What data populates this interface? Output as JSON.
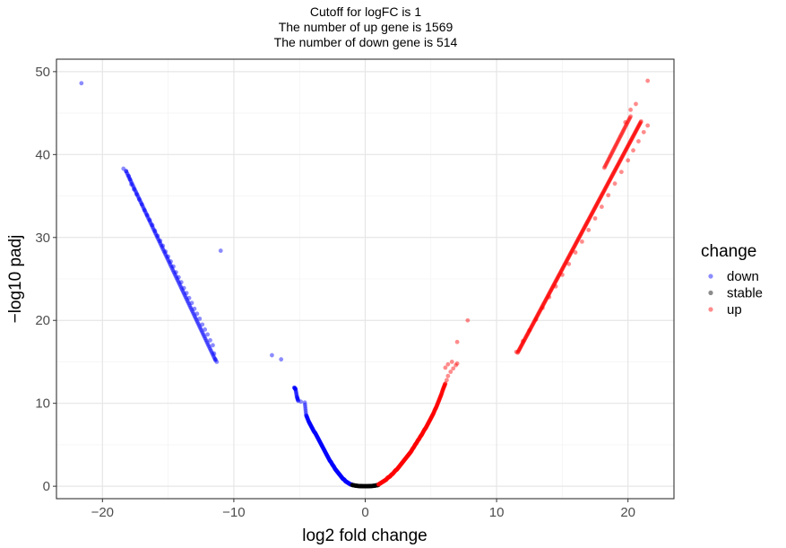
{
  "chart_data": {
    "type": "scatter",
    "title_lines": [
      "Cutoff for logFC is 1",
      "The number of up gene is 1569",
      "The number of down gene is 514"
    ],
    "xlabel": "log2 fold change",
    "ylabel": "−log10 padj",
    "xlim": [
      -23.5,
      23.5
    ],
    "ylim": [
      -1.5,
      51.5
    ],
    "xticks": [
      -20,
      -10,
      0,
      10,
      20
    ],
    "yticks": [
      0,
      10,
      20,
      30,
      40,
      50
    ],
    "xtick_labels": [
      "−20",
      "−10",
      "0",
      "10",
      "20"
    ],
    "ytick_labels": [
      "0",
      "10",
      "20",
      "30",
      "40",
      "50"
    ],
    "grid": true,
    "legend": {
      "title": "change",
      "placement": "right",
      "items": [
        {
          "label": "down",
          "color": "#0000ff"
        },
        {
          "label": "stable",
          "color": "#000000"
        },
        {
          "label": "up",
          "color": "#ff0000"
        }
      ]
    },
    "series": [
      {
        "name": "down",
        "color": "#0000ff",
        "points": [
          [
            -21.6,
            48.6
          ],
          [
            -18.4,
            38.3
          ],
          [
            -18.2,
            38.0
          ],
          [
            -18.0,
            37.4
          ],
          [
            -17.9,
            37.0
          ],
          [
            -17.8,
            36.4
          ],
          [
            -17.6,
            35.8
          ],
          [
            -17.4,
            35.2
          ],
          [
            -17.2,
            34.6
          ],
          [
            -17.0,
            34.0
          ],
          [
            -16.8,
            33.3
          ],
          [
            -16.6,
            32.7
          ],
          [
            -16.4,
            32.1
          ],
          [
            -16.2,
            31.5
          ],
          [
            -16.0,
            30.8
          ],
          [
            -15.8,
            30.2
          ],
          [
            -15.6,
            29.6
          ],
          [
            -15.4,
            29.0
          ],
          [
            -15.2,
            28.3
          ],
          [
            -15.0,
            27.7
          ],
          [
            -14.8,
            27.1
          ],
          [
            -14.6,
            26.5
          ],
          [
            -14.4,
            25.8
          ],
          [
            -14.2,
            25.2
          ],
          [
            -14.0,
            24.6
          ],
          [
            -13.8,
            23.9
          ],
          [
            -13.6,
            23.3
          ],
          [
            -13.4,
            22.7
          ],
          [
            -13.2,
            22.1
          ],
          [
            -13.0,
            21.4
          ],
          [
            -12.8,
            20.8
          ],
          [
            -12.6,
            20.2
          ],
          [
            -12.4,
            19.5
          ],
          [
            -12.2,
            18.9
          ],
          [
            -12.0,
            18.3
          ],
          [
            -11.8,
            17.6
          ],
          [
            -11.6,
            17.0
          ],
          [
            -11.5,
            16.0
          ],
          [
            -11.4,
            15.3
          ],
          [
            -11.3,
            15.0
          ],
          [
            -11.0,
            28.4
          ],
          [
            -7.1,
            15.8
          ],
          [
            -6.4,
            15.3
          ],
          [
            -5.4,
            11.9
          ],
          [
            -5.3,
            11.7
          ],
          [
            -5.2,
            10.8
          ],
          [
            -5.1,
            10.3
          ],
          [
            -4.9,
            10.2
          ],
          [
            -4.6,
            10.1
          ],
          [
            -4.5,
            8.6
          ],
          [
            -4.4,
            8.2
          ],
          [
            -4.3,
            7.8
          ],
          [
            -4.2,
            7.5
          ],
          [
            -4.1,
            7.2
          ],
          [
            -4.0,
            6.9
          ],
          [
            -3.9,
            6.6
          ],
          [
            -3.8,
            6.4
          ],
          [
            -3.7,
            6.1
          ],
          [
            -3.6,
            5.8
          ],
          [
            -3.5,
            5.5
          ],
          [
            -3.4,
            5.2
          ],
          [
            -3.3,
            4.9
          ],
          [
            -3.2,
            4.6
          ],
          [
            -3.1,
            4.3
          ],
          [
            -3.0,
            4.0
          ],
          [
            -2.9,
            3.7
          ],
          [
            -2.8,
            3.4
          ],
          [
            -2.7,
            3.1
          ],
          [
            -2.6,
            2.9
          ],
          [
            -2.5,
            2.6
          ],
          [
            -2.4,
            2.4
          ],
          [
            -2.3,
            2.1
          ],
          [
            -2.2,
            1.9
          ],
          [
            -2.1,
            1.7
          ],
          [
            -2.0,
            1.5
          ],
          [
            -1.9,
            1.3
          ],
          [
            -1.8,
            1.1
          ],
          [
            -1.7,
            0.9
          ],
          [
            -1.6,
            0.8
          ],
          [
            -1.5,
            0.6
          ],
          [
            -1.4,
            0.5
          ],
          [
            -1.3,
            0.4
          ],
          [
            -1.2,
            0.3
          ],
          [
            -1.1,
            0.2
          ],
          [
            -1.0,
            0.2
          ]
        ]
      },
      {
        "name": "stable",
        "color": "#000000",
        "points": [
          [
            -1.0,
            0.15
          ],
          [
            -0.9,
            0.12
          ],
          [
            -0.8,
            0.09
          ],
          [
            -0.7,
            0.06
          ],
          [
            -0.6,
            0.04
          ],
          [
            -0.5,
            0.03
          ],
          [
            -0.4,
            0.02
          ],
          [
            -0.3,
            0.01
          ],
          [
            -0.2,
            0.0
          ],
          [
            -0.1,
            0.0
          ],
          [
            0.0,
            0.0
          ],
          [
            0.1,
            0.0
          ],
          [
            0.2,
            0.0
          ],
          [
            0.3,
            0.01
          ],
          [
            0.4,
            0.02
          ],
          [
            0.5,
            0.03
          ],
          [
            0.6,
            0.04
          ],
          [
            0.7,
            0.06
          ],
          [
            0.8,
            0.09
          ],
          [
            0.9,
            0.12
          ],
          [
            1.0,
            0.15
          ]
        ]
      },
      {
        "name": "up",
        "color": "#ff0000",
        "points": [
          [
            1.0,
            0.2
          ],
          [
            1.1,
            0.3
          ],
          [
            1.2,
            0.4
          ],
          [
            1.3,
            0.5
          ],
          [
            1.4,
            0.6
          ],
          [
            1.5,
            0.7
          ],
          [
            1.6,
            0.8
          ],
          [
            1.7,
            1.0
          ],
          [
            1.8,
            1.1
          ],
          [
            1.9,
            1.2
          ],
          [
            2.0,
            1.4
          ],
          [
            2.1,
            1.5
          ],
          [
            2.2,
            1.7
          ],
          [
            2.3,
            1.9
          ],
          [
            2.4,
            2.0
          ],
          [
            2.5,
            2.2
          ],
          [
            2.6,
            2.4
          ],
          [
            2.7,
            2.6
          ],
          [
            2.8,
            2.8
          ],
          [
            2.9,
            3.0
          ],
          [
            3.0,
            3.2
          ],
          [
            3.1,
            3.4
          ],
          [
            3.2,
            3.6
          ],
          [
            3.3,
            3.8
          ],
          [
            3.4,
            4.0
          ],
          [
            3.5,
            4.2
          ],
          [
            3.6,
            4.5
          ],
          [
            3.7,
            4.7
          ],
          [
            3.8,
            5.0
          ],
          [
            3.9,
            5.2
          ],
          [
            4.0,
            5.5
          ],
          [
            4.1,
            5.7
          ],
          [
            4.2,
            6.0
          ],
          [
            4.3,
            6.2
          ],
          [
            4.4,
            6.5
          ],
          [
            4.5,
            6.8
          ],
          [
            4.6,
            7.0
          ],
          [
            4.7,
            7.3
          ],
          [
            4.8,
            7.6
          ],
          [
            4.9,
            7.9
          ],
          [
            5.0,
            8.2
          ],
          [
            5.1,
            8.5
          ],
          [
            5.2,
            8.8
          ],
          [
            5.3,
            9.2
          ],
          [
            5.4,
            9.5
          ],
          [
            5.5,
            9.9
          ],
          [
            5.6,
            10.3
          ],
          [
            5.7,
            10.7
          ],
          [
            5.8,
            11.1
          ],
          [
            5.9,
            11.6
          ],
          [
            6.0,
            12.0
          ],
          [
            6.1,
            12.4
          ],
          [
            6.2,
            12.8
          ],
          [
            6.3,
            13.3
          ],
          [
            6.5,
            13.8
          ],
          [
            6.7,
            14.2
          ],
          [
            6.9,
            14.6
          ],
          [
            6.6,
            15.0
          ],
          [
            7.0,
            14.8
          ],
          [
            6.3,
            14.7
          ],
          [
            6.1,
            14.3
          ],
          [
            7.0,
            17.4
          ],
          [
            7.8,
            20.0
          ],
          [
            11.5,
            16.2
          ],
          [
            12.0,
            17.5
          ],
          [
            12.5,
            18.8
          ],
          [
            13.0,
            20.1
          ],
          [
            13.5,
            21.5
          ],
          [
            14.0,
            22.8
          ],
          [
            14.5,
            24.1
          ],
          [
            15.0,
            25.5
          ],
          [
            15.5,
            26.8
          ],
          [
            16.0,
            28.2
          ],
          [
            16.5,
            29.5
          ],
          [
            17.0,
            30.9
          ],
          [
            17.5,
            32.3
          ],
          [
            18.0,
            33.7
          ],
          [
            18.5,
            35.1
          ],
          [
            19.0,
            36.5
          ],
          [
            19.5,
            37.9
          ],
          [
            20.0,
            39.3
          ],
          [
            20.4,
            40.5
          ],
          [
            20.8,
            41.6
          ],
          [
            21.2,
            42.7
          ],
          [
            21.5,
            43.5
          ],
          [
            19.8,
            43.9
          ],
          [
            20.2,
            45.4
          ],
          [
            20.6,
            46.1
          ],
          [
            21.5,
            48.9
          ]
        ]
      }
    ],
    "dense_segments": [
      {
        "series": "down",
        "x": [
          -18.2,
          -11.4
        ],
        "y": [
          38.0,
          15.2
        ],
        "count": 120
      },
      {
        "series": "up",
        "x": [
          11.6,
          21.0
        ],
        "y": [
          16.1,
          44.0
        ],
        "count": 260
      },
      {
        "series": "up",
        "x": [
          18.2,
          20.2
        ],
        "y": [
          38.4,
          44.6
        ],
        "count": 40
      }
    ]
  }
}
